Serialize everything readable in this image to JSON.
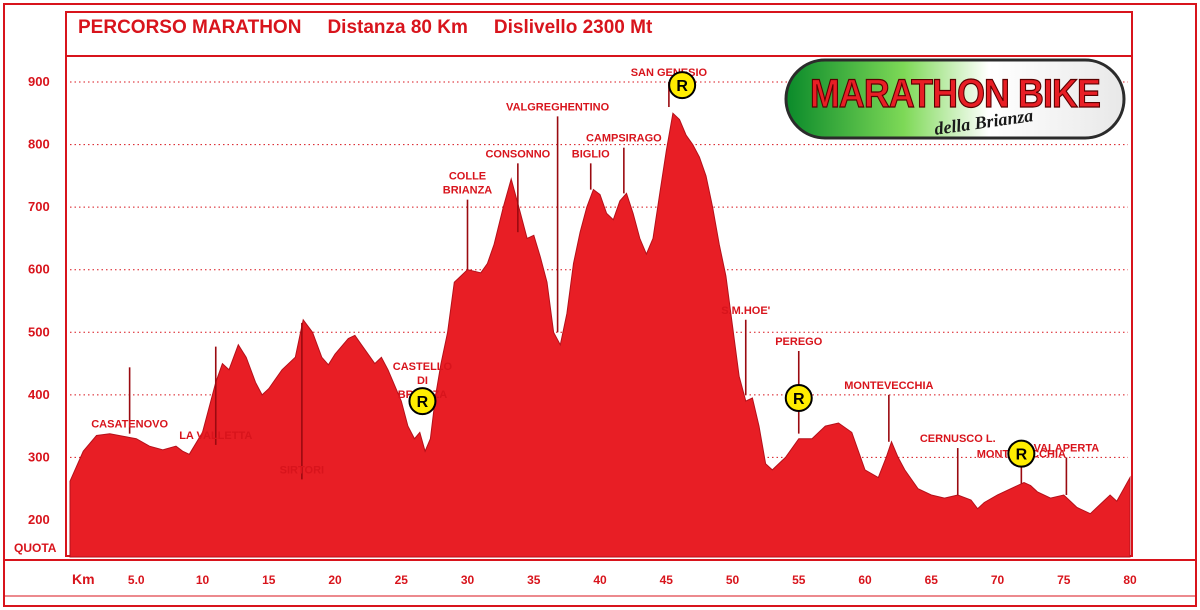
{
  "header": {
    "title": "PERCORSO MARATHON",
    "distance": "Distanza 80 Km",
    "elevation": "Dislivello 2300 Mt"
  },
  "logo": {
    "main_text": "MARATHON BIKE",
    "sub_text": "della Brianza"
  },
  "colors": {
    "frame": "#d8141c",
    "fill": "#e81e25",
    "text": "#d8141c",
    "marker_fill": "#ffed00"
  },
  "chart_data": {
    "type": "area",
    "ylabel": "QUOTA",
    "xlabel": "Km",
    "xlim": [
      0,
      80
    ],
    "ylim": [
      150,
      950
    ],
    "y_ticks": [
      200,
      300,
      400,
      500,
      600,
      700,
      800,
      900
    ],
    "y_tick_labels": [
      "200",
      "300",
      "400",
      "500",
      "600",
      "700",
      "800",
      "900"
    ],
    "x_ticks": [
      5,
      10,
      15,
      20,
      25,
      30,
      35,
      40,
      45,
      50,
      55,
      60,
      65,
      70,
      75,
      80
    ],
    "x_tick_labels": [
      "5.0",
      "10",
      "15",
      "20",
      "25",
      "30",
      "35",
      "40",
      "45",
      "50",
      "55",
      "60",
      "65",
      "70",
      "75",
      "80"
    ],
    "grid": "horizontal dotted",
    "profile": [
      [
        0,
        262
      ],
      [
        1,
        310
      ],
      [
        2,
        335
      ],
      [
        3,
        338
      ],
      [
        4,
        334
      ],
      [
        5,
        330
      ],
      [
        6,
        318
      ],
      [
        7,
        312
      ],
      [
        8,
        318
      ],
      [
        8.5,
        310
      ],
      [
        9,
        305
      ],
      [
        10,
        340
      ],
      [
        11,
        420
      ],
      [
        11.5,
        450
      ],
      [
        12,
        440
      ],
      [
        12.7,
        480
      ],
      [
        13.3,
        460
      ],
      [
        14,
        420
      ],
      [
        14.5,
        400
      ],
      [
        15,
        410
      ],
      [
        16,
        440
      ],
      [
        17,
        460
      ],
      [
        17.6,
        520
      ],
      [
        18.3,
        500
      ],
      [
        19,
        460
      ],
      [
        19.5,
        448
      ],
      [
        20,
        465
      ],
      [
        21,
        490
      ],
      [
        21.5,
        495
      ],
      [
        22,
        480
      ],
      [
        23,
        450
      ],
      [
        23.5,
        460
      ],
      [
        24,
        440
      ],
      [
        25,
        390
      ],
      [
        25.5,
        350
      ],
      [
        26,
        330
      ],
      [
        26.4,
        340
      ],
      [
        26.8,
        310
      ],
      [
        27.2,
        330
      ],
      [
        27.6,
        400
      ],
      [
        28,
        450
      ],
      [
        28.5,
        500
      ],
      [
        29,
        580
      ],
      [
        29.5,
        590
      ],
      [
        30,
        600
      ],
      [
        31,
        595
      ],
      [
        31.5,
        610
      ],
      [
        32,
        640
      ],
      [
        32.7,
        700
      ],
      [
        33.3,
        745
      ],
      [
        34,
        690
      ],
      [
        34.5,
        650
      ],
      [
        35,
        655
      ],
      [
        35.5,
        620
      ],
      [
        36,
        580
      ],
      [
        36.5,
        500
      ],
      [
        37,
        480
      ],
      [
        37.5,
        530
      ],
      [
        38,
        610
      ],
      [
        38.5,
        660
      ],
      [
        39,
        700
      ],
      [
        39.5,
        728
      ],
      [
        40,
        720
      ],
      [
        40.5,
        690
      ],
      [
        41,
        680
      ],
      [
        41.5,
        710
      ],
      [
        42,
        722
      ],
      [
        42.5,
        690
      ],
      [
        43,
        650
      ],
      [
        43.5,
        625
      ],
      [
        44,
        650
      ],
      [
        44.5,
        720
      ],
      [
        45,
        790
      ],
      [
        45.5,
        850
      ],
      [
        46,
        840
      ],
      [
        46.5,
        815
      ],
      [
        47,
        800
      ],
      [
        47.5,
        780
      ],
      [
        48,
        750
      ],
      [
        48.5,
        700
      ],
      [
        49,
        640
      ],
      [
        49.5,
        590
      ],
      [
        50,
        510
      ],
      [
        50.5,
        430
      ],
      [
        51,
        390
      ],
      [
        51.5,
        395
      ],
      [
        52,
        350
      ],
      [
        52.5,
        290
      ],
      [
        53,
        280
      ],
      [
        54,
        300
      ],
      [
        55,
        330
      ],
      [
        56,
        330
      ],
      [
        57,
        350
      ],
      [
        58,
        355
      ],
      [
        59,
        340
      ],
      [
        60,
        280
      ],
      [
        61,
        268
      ],
      [
        61.6,
        300
      ],
      [
        62,
        325
      ],
      [
        62.5,
        300
      ],
      [
        63,
        280
      ],
      [
        64,
        250
      ],
      [
        65,
        240
      ],
      [
        66,
        235
      ],
      [
        67,
        240
      ],
      [
        68,
        232
      ],
      [
        68.5,
        218
      ],
      [
        69,
        228
      ],
      [
        70,
        240
      ],
      [
        71,
        250
      ],
      [
        72,
        260
      ],
      [
        72.5,
        255
      ],
      [
        73,
        245
      ],
      [
        74,
        235
      ],
      [
        75,
        240
      ],
      [
        75.5,
        230
      ],
      [
        76,
        220
      ],
      [
        77,
        210
      ],
      [
        78,
        230
      ],
      [
        78.5,
        240
      ],
      [
        79,
        230
      ],
      [
        80,
        268
      ]
    ],
    "annotations": [
      {
        "label": [
          "CASATENOVO"
        ],
        "km": 4.5,
        "line_from": 444,
        "line_to": 338
      },
      {
        "label": [
          "LA VALLETTA"
        ],
        "km": 11,
        "line_from": 477,
        "line_to": 320
      },
      {
        "label": [
          "SIRTORI"
        ],
        "km": 17.5,
        "line_from": 515,
        "line_to": 265
      },
      {
        "label": [
          "CASTELLO",
          "DI",
          "BRIANZA"
        ],
        "km": 26.6,
        "line_from": 405,
        "line_to": 385
      },
      {
        "label": [
          "COLLE",
          "BRIANZA"
        ],
        "km": 30,
        "line_from": 600,
        "line_to": 712
      },
      {
        "label": [
          "CONSONNO"
        ],
        "km": 33.8,
        "line_from": 660,
        "line_to": 770
      },
      {
        "label": [
          "VALGREGHENTINO"
        ],
        "km": 36.8,
        "line_from": 500,
        "line_to": 845
      },
      {
        "label": [
          "BIGLIO"
        ],
        "km": 39.3,
        "line_from": 728,
        "line_to": 770
      },
      {
        "label": [
          "CAMPSIRAGO"
        ],
        "km": 41.8,
        "line_from": 722,
        "line_to": 795
      },
      {
        "label": [
          "SAN GENESIO"
        ],
        "km": 45.2,
        "line_from": 860,
        "line_to": 900
      },
      {
        "label": [
          "S.M.HOE'"
        ],
        "km": 51,
        "line_from": 400,
        "line_to": 520
      },
      {
        "label": [
          "PEREGO"
        ],
        "km": 55,
        "line_from": 338,
        "line_to": 470
      },
      {
        "label": [
          "MONTEVECCHIA"
        ],
        "km": 61.8,
        "line_from": 325,
        "line_to": 400
      },
      {
        "label": [
          "CERNUSCO L."
        ],
        "km": 67,
        "line_from": 240,
        "line_to": 315
      },
      {
        "label": [
          "MONTEVECCHIA"
        ],
        "km": 71.8,
        "line_from": 258,
        "line_to": 290
      },
      {
        "label": [
          "VALAPERTA"
        ],
        "km": 75.2,
        "line_from": 240,
        "line_to": 300
      }
    ],
    "refreshment_points": [
      {
        "label": "R",
        "km": 26.6,
        "quota": 390
      },
      {
        "label": "R",
        "km": 46.2,
        "quota": 895
      },
      {
        "label": "R",
        "km": 55,
        "quota": 395
      },
      {
        "label": "R",
        "km": 71.8,
        "quota": 306
      }
    ]
  }
}
